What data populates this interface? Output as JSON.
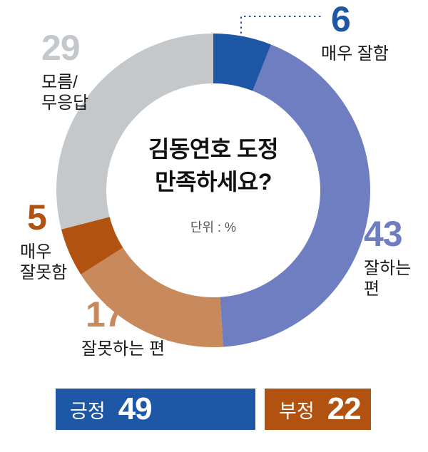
{
  "chart_data": {
    "type": "pie",
    "donut": true,
    "title": "김동연호 도정\n만족하세요?",
    "unit_label": "단위 : %",
    "segments": [
      {
        "label": "매우 잘함",
        "value": 6,
        "color": "#1d57a5"
      },
      {
        "label": "잘하는\n편",
        "value": 43,
        "color": "#6e7ec0"
      },
      {
        "label": "잘못하는 편",
        "value": 17,
        "color": "#c88a5c"
      },
      {
        "label": "매우\n잘못함",
        "value": 5,
        "color": "#b25210"
      },
      {
        "label": "모름/\n무응답",
        "value": 29,
        "color": "#c5c8cb"
      }
    ],
    "summary": [
      {
        "label": "긍정",
        "value": 49,
        "color": "#1d57a5"
      },
      {
        "label": "부정",
        "value": 22,
        "color": "#b25210"
      }
    ]
  }
}
